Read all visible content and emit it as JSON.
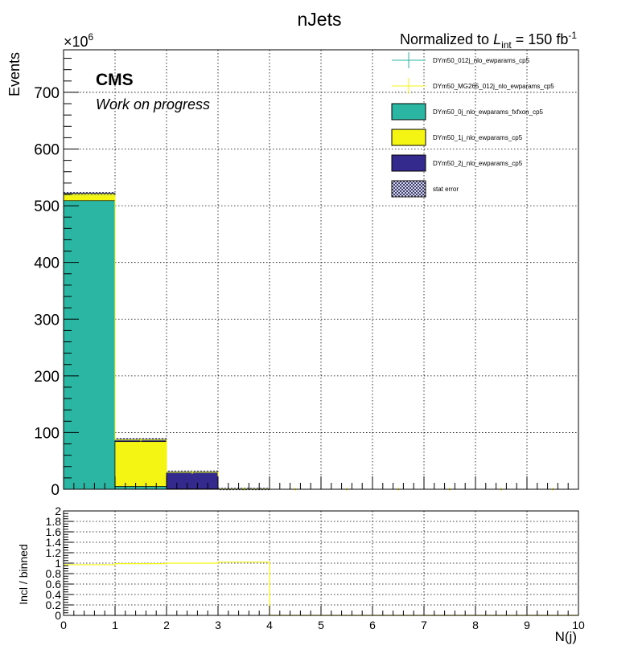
{
  "chart_data": [
    {
      "type": "bar",
      "stacked": true,
      "title": "nJets",
      "header_right": {
        "prefix": "Normalized to ",
        "lumi_symbol": "L",
        "lumi_sub": "int",
        "lumi_eq": " = 150 fb",
        "lumi_sup": "-1"
      },
      "cms_label": "CMS",
      "cms_sublabel": "Work on progress",
      "ylabel": "Events",
      "y_multiplier": "×10",
      "y_multiplier_exp": "6",
      "xlim": [
        0,
        10
      ],
      "ylim": [
        0,
        775
      ],
      "x_ticks": [
        "0",
        "1",
        "2",
        "3",
        "4",
        "5",
        "6",
        "7",
        "8",
        "9",
        "10"
      ],
      "y_ticks": [
        "0",
        "100",
        "200",
        "300",
        "400",
        "500",
        "600",
        "700"
      ],
      "bin_edges": [
        0,
        1,
        2,
        3,
        4,
        5,
        6,
        7,
        8,
        9,
        10
      ],
      "series": [
        {
          "name": "DYm50_0j_nlo_ewparams_fxfxon_cp5",
          "color": "#2bb5a3",
          "values": [
            509,
            5,
            0,
            0,
            0,
            0,
            0,
            0,
            0,
            0
          ]
        },
        {
          "name": "DYm50_1j_nlo_ewparams_cp5",
          "color": "#f5f514",
          "values": [
            13,
            79,
            0.8,
            0,
            0,
            0,
            0,
            0,
            0,
            0
          ]
        },
        {
          "name": "DYm50_2j_nlo_ewparams_cp5",
          "color": "#34298c",
          "values": [
            0,
            4,
            30,
            0.5,
            0,
            0,
            0,
            0,
            0,
            0
          ]
        }
      ],
      "overlay_series": [
        {
          "name": "DYm50_012j_nlo_ewparams_cp5",
          "color": "#2bb5a3",
          "values": [
            518,
            87,
            30,
            0.5,
            0,
            0,
            0,
            0,
            0,
            0
          ]
        },
        {
          "name": "DYm50_MG265_012j_nlo_ewparams_cp5",
          "color": "#f5f514",
          "values": [
            518,
            87,
            30,
            0.5,
            0,
            0,
            0,
            0,
            0,
            0
          ]
        }
      ],
      "stat_error_label": "stat error",
      "legend_position": "top-right",
      "grid": true
    },
    {
      "type": "line",
      "ylabel": "Incl / binned",
      "xlabel": "N(j)",
      "xlim": [
        0,
        10
      ],
      "ylim": [
        0,
        2
      ],
      "x_ticks": [
        "0",
        "1",
        "2",
        "3",
        "4",
        "5",
        "6",
        "7",
        "8",
        "9",
        "10"
      ],
      "y_ticks": [
        "0",
        "0.2",
        "0.4",
        "0.6",
        "0.8",
        "1",
        "1.2",
        "1.4",
        "1.6",
        "1.8",
        "2"
      ],
      "bin_edges": [
        0,
        1,
        2,
        3,
        4,
        5,
        6,
        7,
        8,
        9,
        10
      ],
      "series": [
        {
          "color": "#f5f514",
          "values": [
            0.97,
            0.99,
            1.0,
            1.02,
            0,
            0,
            0,
            0,
            0,
            0
          ]
        }
      ],
      "grid": true
    }
  ]
}
